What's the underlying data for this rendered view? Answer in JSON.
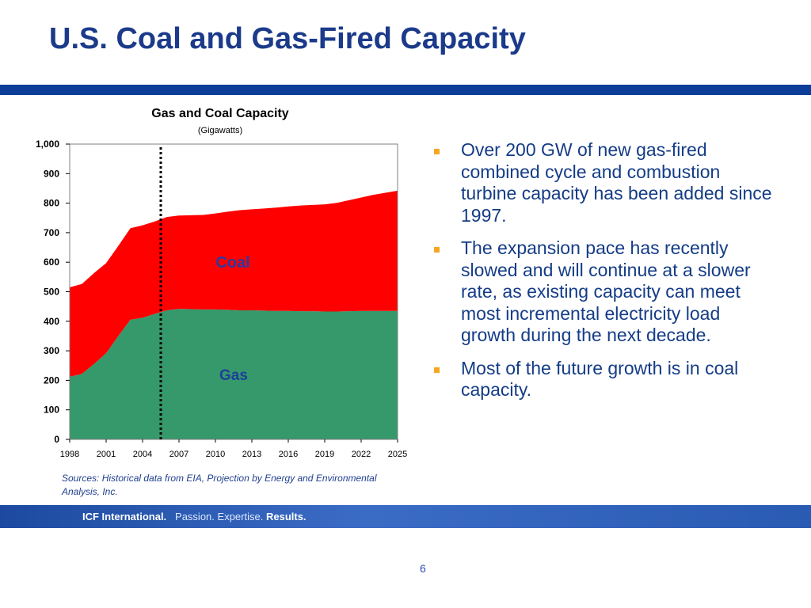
{
  "slide": {
    "title": "U.S. Coal and Gas-Fired Capacity",
    "page_number": "6"
  },
  "bullets": [
    "Over 200 GW of new gas-fired combined cycle and combustion turbine capacity has been added since 1997.",
    "The expansion pace has recently slowed and will continue at a slower rate, as existing capacity can meet most incremental electricity load growth during the next decade.",
    "Most of the future growth is in coal capacity."
  ],
  "source": "Sources: Historical data from EIA, Projection by Energy and Environmental Analysis, Inc.",
  "footer": {
    "company": "ICF International.",
    "tag_passion": "Passion.",
    "tag_expertise": "Expertise.",
    "tag_results": "Results."
  },
  "colors": {
    "gas": "#35996b",
    "coal": "#ff0000",
    "title": "#1b3a8a",
    "title_bar": "#0b3d99",
    "bullet_marker": "#f5a623"
  },
  "chart_data": {
    "type": "area",
    "stacked": true,
    "title": "Gas and Coal Capacity",
    "subtitle": "(Gigawatts)",
    "x_ticks": [
      "1998",
      "2001",
      "2004",
      "2007",
      "2010",
      "2013",
      "2016",
      "2019",
      "2022",
      "2025"
    ],
    "y_ticks": [
      "0",
      "100",
      "200",
      "300",
      "400",
      "500",
      "600",
      "700",
      "800",
      "900",
      "1,000"
    ],
    "ylim": [
      0,
      1000
    ],
    "xlim": [
      1998,
      2025
    ],
    "x": [
      1998,
      1999,
      2000,
      2001,
      2002,
      2003,
      2004,
      2005,
      2006,
      2007,
      2008,
      2009,
      2010,
      2011,
      2012,
      2013,
      2014,
      2015,
      2016,
      2017,
      2018,
      2019,
      2020,
      2021,
      2022,
      2023,
      2024,
      2025
    ],
    "series": [
      {
        "name": "Gas",
        "values": [
          212,
          222,
          255,
          292,
          350,
          405,
          412,
          425,
          437,
          442,
          441,
          440,
          440,
          439,
          437,
          437,
          436,
          435,
          435,
          434,
          434,
          433,
          433,
          434,
          435,
          435,
          435,
          435
        ]
      },
      {
        "name": "Coal",
        "values": [
          303,
          304,
          308,
          305,
          305,
          310,
          313,
          313,
          316,
          316,
          318,
          320,
          325,
          332,
          339,
          342,
          346,
          350,
          354,
          358,
          360,
          363,
          368,
          376,
          384,
          393,
          400,
          407
        ]
      }
    ],
    "divider_x": 2005.5,
    "annotations": [
      "Coal",
      "Gas"
    ],
    "grid": false
  }
}
